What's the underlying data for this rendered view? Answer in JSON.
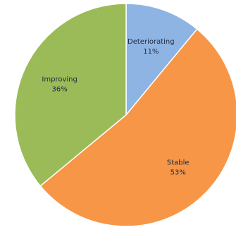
{
  "chart_data": {
    "type": "pie",
    "slices": [
      {
        "name": "Deteriorating",
        "value": 11,
        "label": "11%",
        "color": "#8eb4e3"
      },
      {
        "name": "Stable",
        "value": 53,
        "label": "53%",
        "color": "#f79646"
      },
      {
        "name": "Improving",
        "value": 36,
        "label": "36%",
        "color": "#9bbb59"
      }
    ],
    "start_angle": "12 o'clock",
    "direction": "clockwise",
    "legend": "none"
  }
}
